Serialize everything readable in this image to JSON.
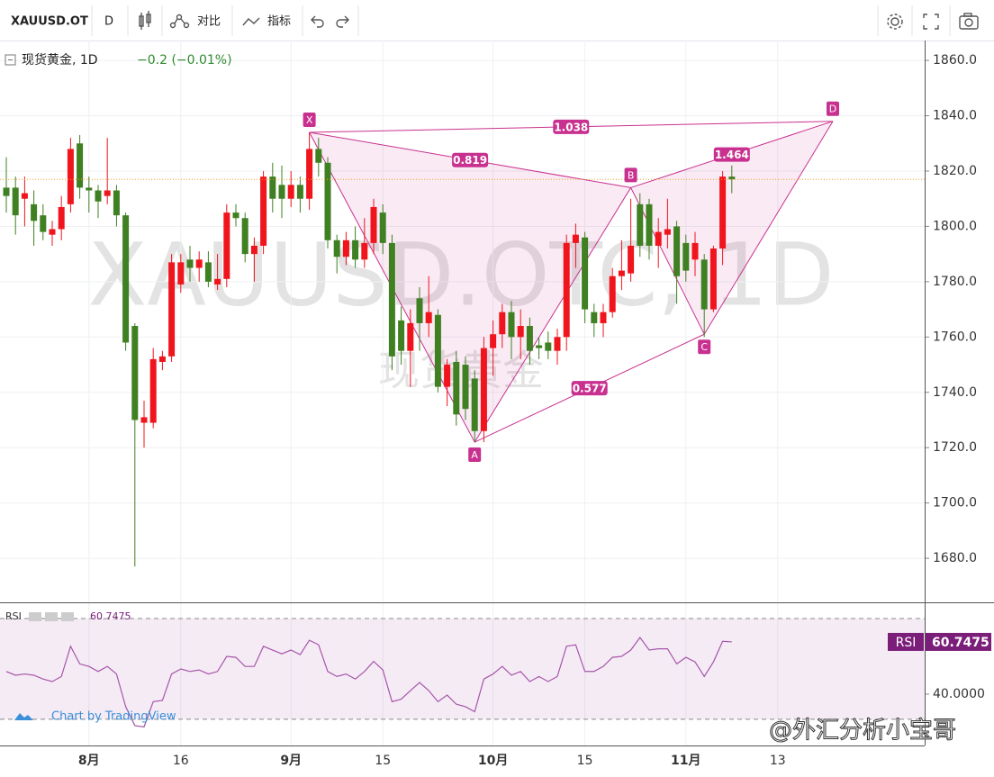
{
  "toolbar": {
    "symbol": "XAUUSD.OT",
    "interval": "D",
    "compare": "对比",
    "indicators": "指标"
  },
  "chart_data": {
    "type": "candlestick",
    "title": "现货黄金, 1D",
    "change": "−0.2 (−0.01%)",
    "watermark": "XAUUSD.OTC, 1D",
    "watermark_sub": "现货黄金",
    "categories": [
      null,
      null,
      null,
      null,
      null,
      null,
      null,
      null,
      null,
      "8月",
      null,
      null,
      null,
      null,
      null,
      null,
      null,
      null,
      null,
      "16",
      null,
      null,
      null,
      null,
      null,
      null,
      null,
      null,
      null,
      null,
      null,
      "9月",
      null,
      null,
      null,
      null,
      null,
      null,
      null,
      null,
      null,
      "15",
      null,
      null,
      null,
      null,
      null,
      null,
      null,
      null,
      null,
      null,
      null,
      "10月",
      null,
      null,
      null,
      null,
      null,
      null,
      null,
      null,
      null,
      "15",
      null,
      null,
      null,
      null,
      null,
      null,
      null,
      null,
      null,
      null,
      "11月",
      null,
      null,
      null,
      null,
      null,
      null,
      null,
      null,
      null,
      "13",
      null,
      null,
      null,
      null,
      null,
      null,
      null,
      null,
      null,
      null,
      null,
      null,
      null,
      null,
      null
    ],
    "open": [
      1814,
      1814,
      1810,
      1808,
      1804,
      1797,
      1799,
      1808,
      1830,
      1814,
      1813,
      1811,
      1813,
      1804,
      1764,
      1729,
      1729,
      1751,
      1753,
      1779,
      1788,
      1785,
      1787,
      1779,
      1781,
      1805,
      1803,
      1790,
      1793,
      1818,
      1815,
      1810,
      1815,
      1810,
      1828,
      1823,
      1795,
      1789,
      1795,
      1788,
      1794,
      1805,
      1794,
      1766,
      1755,
      1774,
      1765,
      1768,
      1742,
      1751,
      1750,
      1745,
      1726,
      1756,
      1761,
      1769,
      1760,
      1764,
      1757,
      1758,
      1755,
      1760,
      1794,
      1796,
      1769,
      1765,
      1769,
      1782,
      1783,
      1808,
      1808,
      1793,
      1797,
      1800,
      1794,
      1788,
      1788,
      1770,
      1792,
      1818,
      null,
      null,
      null,
      null,
      null,
      null,
      null,
      null,
      null,
      null,
      null,
      null,
      null,
      null,
      null,
      null,
      null,
      null,
      null,
      null
    ],
    "high": [
      1825,
      1818,
      1818,
      1813,
      1808,
      1802,
      1811,
      1832,
      1833,
      1818,
      1815,
      1832,
      1815,
      1805,
      1765,
      1737,
      1756,
      1755,
      1790,
      1790,
      1793,
      1791,
      1791,
      1790,
      1808,
      1808,
      1805,
      1796,
      1820,
      1823,
      1822,
      1820,
      1818,
      1834,
      1832,
      1825,
      1797,
      1798,
      1800,
      1803,
      1810,
      1808,
      1797,
      1771,
      1770,
      1778,
      1782,
      1770,
      1752,
      1755,
      1753,
      1748,
      1760,
      1766,
      1772,
      1773,
      1770,
      1767,
      1760,
      1762,
      1763,
      1797,
      1801,
      1798,
      1772,
      1772,
      1785,
      1795,
      1810,
      1812,
      1810,
      1803,
      1810,
      1802,
      1797,
      1798,
      1790,
      1793,
      1820,
      1822,
      null,
      null,
      null,
      null,
      null,
      null,
      null,
      null,
      null,
      null,
      null,
      null,
      null,
      null,
      null,
      null,
      null,
      null,
      null,
      null
    ],
    "low": [
      1805,
      1797,
      1800,
      1793,
      1795,
      1793,
      1795,
      1805,
      1810,
      1805,
      1803,
      1808,
      1800,
      1755,
      1677,
      1720,
      1727,
      1748,
      1751,
      1776,
      1780,
      1780,
      1778,
      1777,
      1778,
      1800,
      1787,
      1780,
      1790,
      1805,
      1803,
      1807,
      1805,
      1806,
      1818,
      1792,
      1783,
      1786,
      1785,
      1785,
      1790,
      1790,
      1748,
      1750,
      1742,
      1755,
      1760,
      1740,
      1735,
      1728,
      1730,
      1722,
      1722,
      1746,
      1756,
      1752,
      1752,
      1750,
      1752,
      1752,
      1750,
      1755,
      1785,
      1765,
      1760,
      1760,
      1767,
      1777,
      1780,
      1789,
      1788,
      1785,
      1792,
      1772,
      1780,
      1782,
      1760,
      1769,
      1786,
      1812,
      null,
      null,
      null,
      null,
      null,
      null,
      null,
      null,
      null,
      null,
      null,
      null,
      null,
      null,
      null,
      null,
      null,
      null,
      null,
      null
    ],
    "close": [
      1811,
      1804,
      1812,
      1802,
      1798,
      1799,
      1807,
      1828,
      1814,
      1813,
      1809,
      1813,
      1804,
      1758,
      1730,
      1731,
      1752,
      1753,
      1787,
      1787,
      1785,
      1788,
      1780,
      1781,
      1805,
      1803,
      1790,
      1793,
      1818,
      1810,
      1810,
      1815,
      1810,
      1828,
      1823,
      1795,
      1789,
      1795,
      1788,
      1794,
      1807,
      1794,
      1753,
      1755,
      1765,
      1765,
      1769,
      1742,
      1750,
      1732,
      1734,
      1726,
      1756,
      1761,
      1769,
      1760,
      1764,
      1755,
      1756,
      1755,
      1760,
      1794,
      1797,
      1770,
      1765,
      1769,
      1782,
      1784,
      1793,
      1793,
      1793,
      1798,
      1799,
      1782,
      1784,
      1794,
      1770,
      1792,
      1818,
      1817,
      null,
      null,
      null,
      null,
      null,
      null,
      null,
      null,
      null,
      null,
      null,
      null,
      null,
      null,
      null,
      null,
      null,
      null,
      null,
      null
    ],
    "up_color": "#f0141d",
    "down_color": "#3f8022",
    "ylim": [
      1664.4,
      1867.2
    ],
    "yticks": [
      {
        "value": 1680,
        "label": "1680.0"
      },
      {
        "value": 1700,
        "label": "1700.0"
      },
      {
        "value": 1720,
        "label": "1720.0"
      },
      {
        "value": 1740,
        "label": "1740.0"
      },
      {
        "value": 1760,
        "label": "1760.0"
      },
      {
        "value": 1780,
        "label": "1780.0"
      },
      {
        "value": 1800,
        "label": "1800.0"
      },
      {
        "value": 1820,
        "label": "1820.0"
      },
      {
        "value": 1840,
        "label": "1840.0"
      },
      {
        "value": 1860,
        "label": "1860.0"
      }
    ],
    "grid": true,
    "last_price_line_color": "#f0a020",
    "pattern": {
      "color": "#c8318f",
      "points": [
        {
          "label": "X",
          "x": 33,
          "y": 1834
        },
        {
          "label": "A",
          "x": 51,
          "y": 1722
        },
        {
          "label": "B",
          "x": 68,
          "y": 1814
        },
        {
          "label": "C",
          "x": 76,
          "y": 1761
        },
        {
          "label": "D",
          "x": 90,
          "y": 1838
        }
      ],
      "legs": [
        {
          "from": "X",
          "to": "B",
          "ratio": 0.819
        },
        {
          "from": "X",
          "to": "D",
          "ratio": 1.038
        },
        {
          "from": "A",
          "to": "C",
          "ratio": 0.577
        },
        {
          "from": "B",
          "to": "D",
          "ratio": 1.464
        }
      ]
    },
    "rsi": {
      "name": "RSI",
      "color": "#a656a9",
      "values": [
        49,
        47.5,
        48,
        47.5,
        46,
        45,
        47,
        59,
        52,
        51,
        49,
        51,
        48,
        35,
        27.5,
        27,
        37,
        37.5,
        48,
        50,
        49,
        49.6,
        48,
        49,
        55,
        54.6,
        51,
        51,
        59,
        57.5,
        56,
        57.5,
        55.7,
        61.4,
        59.6,
        49,
        47,
        48,
        46,
        49,
        53,
        49.6,
        37,
        38,
        41.4,
        44.6,
        41.4,
        37,
        39.6,
        36,
        35,
        33,
        46,
        48,
        51,
        47.5,
        49,
        45,
        47,
        45,
        47,
        59,
        59.6,
        49,
        49,
        51,
        54.6,
        55,
        57.5,
        62.5,
        57.5,
        58,
        58,
        52,
        54.6,
        52.8,
        47,
        52.8,
        61,
        60.7475,
        null,
        null,
        null,
        null,
        null,
        null,
        null,
        null,
        null,
        null,
        null,
        null,
        null,
        null,
        null,
        null,
        null,
        null,
        null,
        null
      ],
      "ylim": [
        19.6,
        76.1
      ],
      "yticks": [
        {
          "value": 40,
          "label": "40.0000"
        }
      ],
      "bands": [
        30,
        70
      ]
    }
  },
  "footer": {
    "credit": "Chart by TradingView",
    "signature": "@外汇分析小宝哥"
  }
}
